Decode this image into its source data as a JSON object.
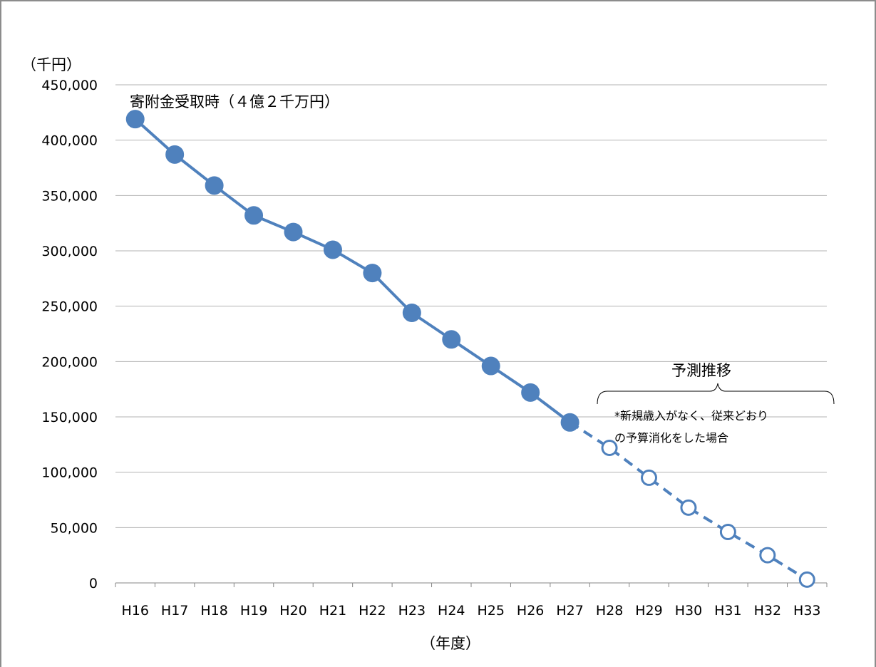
{
  "chart_data": {
    "type": "line",
    "ylabel": "（千円）",
    "xlabel": "（年度）",
    "ylim": [
      0,
      450000
    ],
    "yticks": [
      0,
      50000,
      100000,
      150000,
      200000,
      250000,
      300000,
      350000,
      400000,
      450000
    ],
    "ytick_labels": [
      "0",
      "50,000",
      "100,000",
      "150,000",
      "200,000",
      "250,000",
      "300,000",
      "350,000",
      "400,000",
      "450,000"
    ],
    "grid": true,
    "categories": [
      "H16",
      "H17",
      "H18",
      "H19",
      "H20",
      "H21",
      "H22",
      "H23",
      "H24",
      "H25",
      "H26",
      "H27",
      "H28",
      "H29",
      "H30",
      "H31",
      "H32",
      "H33"
    ],
    "series": [
      {
        "values": [
          419000,
          387000,
          359000,
          332000,
          317000,
          301000,
          280000,
          244000,
          220000,
          196000,
          172000,
          145000,
          null,
          null,
          null,
          null,
          null,
          null
        ],
        "style": "solid-filled"
      },
      {
        "values": [
          null,
          null,
          null,
          null,
          null,
          null,
          null,
          null,
          null,
          null,
          null,
          145000,
          122000,
          95000,
          68000,
          46000,
          25000,
          3000
        ],
        "style": "dashed-hollow"
      }
    ],
    "line_color": "#4f81bd",
    "annotations": {
      "start_label": "寄附金受取時（４億２千万円）",
      "forecast_label": "予測推移",
      "forecast_note_line1": "*新規歳入がなく、従来どおり",
      "forecast_note_line2": "の予算消化をした場合"
    }
  }
}
